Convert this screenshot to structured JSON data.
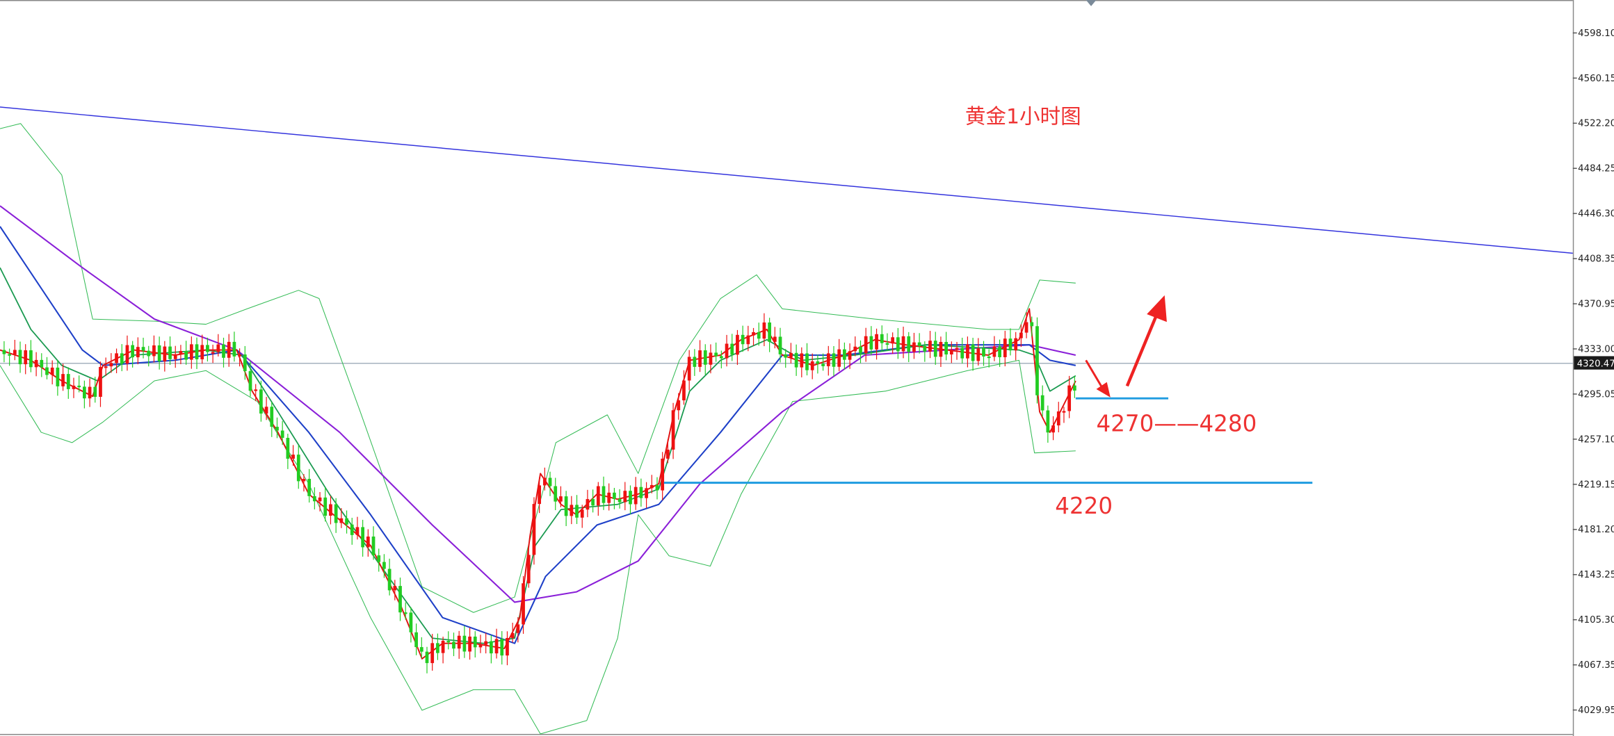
{
  "title_annotation": "黄金1小时图",
  "annotations": {
    "range": "4270——4280",
    "support": "4220"
  },
  "price_axis": {
    "labels": [
      "4598.10",
      "4560.15",
      "4522.20",
      "4484.25",
      "4446.30",
      "4408.35",
      "4370.95",
      "4333.00",
      "4295.05",
      "4257.10",
      "4219.15",
      "4181.20",
      "4143.25",
      "4105.30",
      "4067.35",
      "4029.95"
    ],
    "current_price": "4320.47"
  }
}
